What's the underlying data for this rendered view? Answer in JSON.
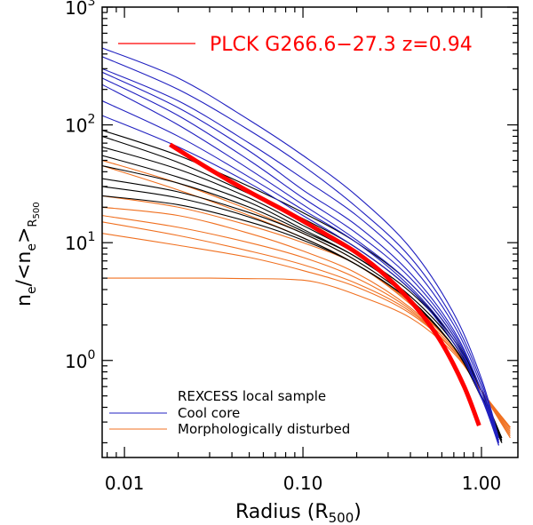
{
  "chart_data": {
    "type": "line",
    "scale": {
      "x": "log",
      "y": "log"
    },
    "xlim": [
      0.0075,
      1.6
    ],
    "ylim": [
      0.15,
      1000
    ],
    "xlabel": {
      "main": "Radius (R",
      "sub": "500",
      "close": ")"
    },
    "ylabel": {
      "n": "n",
      "e1": "e",
      "mid": "/<n",
      "e2": "e",
      "close": ">",
      "sub": "R",
      "subsub": "500"
    },
    "x_ticks": [
      {
        "value": 0.01,
        "label": "0.01"
      },
      {
        "value": 0.1,
        "label": "0.10"
      },
      {
        "value": 1.0,
        "label": "1.00"
      }
    ],
    "y_ticks": [
      {
        "value": 1,
        "base": "10",
        "exp": "0"
      },
      {
        "value": 10,
        "base": "10",
        "exp": "1"
      },
      {
        "value": 100,
        "base": "10",
        "exp": "2"
      },
      {
        "value": 1000,
        "base": "10",
        "exp": "3"
      }
    ],
    "legend_top": {
      "label": "PLCK G266.6−27.3  z=0.94",
      "color": "#ff0000"
    },
    "legend_bottom": {
      "title": "REXCESS local sample",
      "entries": [
        {
          "label": "Cool core",
          "color": "#2020c0"
        },
        {
          "label": "Morphologically disturbed",
          "color": "#f07020"
        }
      ]
    },
    "series": [
      {
        "name": "cool-core-1",
        "group": "cool",
        "color": "#2020c0",
        "x": [
          0.0075,
          0.02,
          0.05,
          0.1,
          0.2,
          0.4,
          0.7,
          1.0,
          1.25
        ],
        "y": [
          450,
          250,
          110,
          55,
          25,
          9,
          2.5,
          0.7,
          0.22
        ]
      },
      {
        "name": "cool-core-2",
        "group": "cool",
        "color": "#2020c0",
        "x": [
          0.0075,
          0.02,
          0.05,
          0.1,
          0.2,
          0.4,
          0.7,
          1.0,
          1.25
        ],
        "y": [
          380,
          200,
          90,
          45,
          20,
          7.5,
          2.2,
          0.65,
          0.21
        ]
      },
      {
        "name": "cool-core-3",
        "group": "cool",
        "color": "#2020c0",
        "x": [
          0.0075,
          0.02,
          0.05,
          0.1,
          0.2,
          0.4,
          0.7,
          1.0,
          1.25
        ],
        "y": [
          300,
          160,
          70,
          35,
          17,
          6.5,
          2.0,
          0.6,
          0.2
        ]
      },
      {
        "name": "cool-core-4",
        "group": "cool",
        "color": "#2020c0",
        "x": [
          0.0075,
          0.02,
          0.05,
          0.1,
          0.2,
          0.4,
          0.7,
          1.0,
          1.25
        ],
        "y": [
          280,
          140,
          60,
          28,
          14,
          5.5,
          1.8,
          0.55,
          0.19
        ]
      },
      {
        "name": "cool-core-5",
        "group": "cool",
        "color": "#2020c0",
        "x": [
          0.0075,
          0.02,
          0.05,
          0.1,
          0.2,
          0.4,
          0.7,
          1.0,
          1.25
        ],
        "y": [
          250,
          120,
          50,
          24,
          12,
          5.0,
          1.7,
          0.55,
          0.2
        ]
      },
      {
        "name": "cool-core-6",
        "group": "cool",
        "color": "#2020c0",
        "x": [
          0.0075,
          0.02,
          0.05,
          0.1,
          0.2,
          0.4,
          0.7,
          1.0,
          1.25
        ],
        "y": [
          220,
          100,
          42,
          21,
          10.5,
          4.5,
          1.6,
          0.5,
          0.2
        ]
      },
      {
        "name": "cool-core-7",
        "group": "cool",
        "color": "#2020c0",
        "x": [
          0.0075,
          0.02,
          0.05,
          0.1,
          0.2,
          0.4,
          0.7,
          1.0,
          1.25
        ],
        "y": [
          160,
          80,
          36,
          19,
          10,
          4.2,
          1.5,
          0.5,
          0.2
        ]
      },
      {
        "name": "cool-core-8",
        "group": "cool",
        "color": "#2020c0",
        "x": [
          0.0075,
          0.02,
          0.05,
          0.1,
          0.2,
          0.4,
          0.7,
          1.0,
          1.25
        ],
        "y": [
          120,
          65,
          32,
          17,
          9,
          4.0,
          1.4,
          0.48,
          0.19
        ]
      },
      {
        "name": "regular-1",
        "group": "regular",
        "color": "#000000",
        "x": [
          0.0075,
          0.02,
          0.05,
          0.1,
          0.2,
          0.4,
          0.7,
          1.0,
          1.3
        ],
        "y": [
          90,
          55,
          30,
          18,
          10,
          4.5,
          1.6,
          0.55,
          0.2
        ]
      },
      {
        "name": "regular-2",
        "group": "regular",
        "color": "#000000",
        "x": [
          0.0075,
          0.02,
          0.05,
          0.1,
          0.2,
          0.4,
          0.7,
          1.0,
          1.3
        ],
        "y": [
          80,
          48,
          26,
          16,
          9,
          4.0,
          1.5,
          0.5,
          0.2
        ]
      },
      {
        "name": "regular-3",
        "group": "regular",
        "color": "#000000",
        "x": [
          0.0075,
          0.02,
          0.05,
          0.1,
          0.2,
          0.4,
          0.7,
          1.0,
          1.3
        ],
        "y": [
          65,
          42,
          24,
          14,
          8,
          3.8,
          1.5,
          0.55,
          0.22
        ]
      },
      {
        "name": "regular-4",
        "group": "regular",
        "color": "#000000",
        "x": [
          0.0075,
          0.02,
          0.05,
          0.1,
          0.2,
          0.4,
          0.7,
          1.0,
          1.3
        ],
        "y": [
          55,
          36,
          22,
          13,
          7.5,
          3.5,
          1.4,
          0.5,
          0.2
        ]
      },
      {
        "name": "regular-5",
        "group": "regular",
        "color": "#000000",
        "x": [
          0.0075,
          0.02,
          0.05,
          0.1,
          0.2,
          0.4,
          0.7,
          1.0,
          1.3
        ],
        "y": [
          45,
          32,
          20,
          12.5,
          7.5,
          3.5,
          1.4,
          0.5,
          0.21
        ]
      },
      {
        "name": "regular-6",
        "group": "regular",
        "color": "#000000",
        "x": [
          0.0075,
          0.02,
          0.05,
          0.1,
          0.2,
          0.4,
          0.7,
          1.0,
          1.3
        ],
        "y": [
          35,
          27,
          18,
          12,
          7,
          3.3,
          1.3,
          0.48,
          0.2
        ]
      },
      {
        "name": "regular-7",
        "group": "regular",
        "color": "#000000",
        "x": [
          0.0075,
          0.02,
          0.05,
          0.1,
          0.2,
          0.4,
          0.7,
          1.0,
          1.3
        ],
        "y": [
          30,
          24,
          16.5,
          11,
          6.5,
          3.2,
          1.3,
          0.5,
          0.21
        ]
      },
      {
        "name": "regular-8",
        "group": "regular",
        "color": "#000000",
        "x": [
          0.0075,
          0.02,
          0.05,
          0.1,
          0.2,
          0.4,
          0.7,
          1.0,
          1.3
        ],
        "y": [
          25,
          21,
          15,
          10.5,
          6.5,
          3.2,
          1.3,
          0.5,
          0.22
        ]
      },
      {
        "name": "disturbed-1",
        "group": "disturbed",
        "color": "#f07020",
        "x": [
          0.0075,
          0.02,
          0.05,
          0.1,
          0.2,
          0.4,
          0.7,
          1.0,
          1.45
        ],
        "y": [
          50,
          32,
          19,
          12,
          7,
          3.3,
          1.3,
          0.55,
          0.22
        ]
      },
      {
        "name": "disturbed-2",
        "group": "disturbed",
        "color": "#f07020",
        "x": [
          0.0075,
          0.02,
          0.05,
          0.1,
          0.2,
          0.4,
          0.7,
          1.0,
          1.45
        ],
        "y": [
          45,
          28,
          17,
          11,
          6.5,
          3.1,
          1.3,
          0.55,
          0.23
        ]
      },
      {
        "name": "disturbed-3",
        "group": "disturbed",
        "color": "#f07020",
        "x": [
          0.0075,
          0.02,
          0.05,
          0.1,
          0.2,
          0.4,
          0.7,
          1.0,
          1.45
        ],
        "y": [
          25,
          20,
          14,
          10,
          6.5,
          3.0,
          1.3,
          0.55,
          0.24
        ]
      },
      {
        "name": "disturbed-4",
        "group": "disturbed",
        "color": "#f07020",
        "x": [
          0.0075,
          0.02,
          0.05,
          0.1,
          0.2,
          0.4,
          0.7,
          1.0,
          1.45
        ],
        "y": [
          20,
          17,
          12,
          8.5,
          5.5,
          2.8,
          1.25,
          0.55,
          0.25
        ]
      },
      {
        "name": "disturbed-5",
        "group": "disturbed",
        "color": "#f07020",
        "x": [
          0.0075,
          0.02,
          0.05,
          0.1,
          0.2,
          0.4,
          0.7,
          1.0,
          1.45
        ],
        "y": [
          17,
          13.5,
          10,
          7.5,
          5,
          2.7,
          1.2,
          0.55,
          0.26
        ]
      },
      {
        "name": "disturbed-6",
        "group": "disturbed",
        "color": "#f07020",
        "x": [
          0.0075,
          0.02,
          0.05,
          0.1,
          0.2,
          0.4,
          0.7,
          1.0,
          1.45
        ],
        "y": [
          15,
          11.5,
          8.5,
          6.5,
          4.5,
          2.6,
          1.2,
          0.55,
          0.27
        ]
      },
      {
        "name": "disturbed-7",
        "group": "disturbed",
        "color": "#f07020",
        "x": [
          0.0075,
          0.02,
          0.05,
          0.1,
          0.2,
          0.4,
          0.7,
          1.0,
          1.45
        ],
        "y": [
          12,
          9.5,
          7.5,
          5.8,
          4.2,
          2.5,
          1.2,
          0.55,
          0.27
        ]
      },
      {
        "name": "disturbed-8",
        "group": "disturbed",
        "color": "#f07020",
        "x": [
          0.0075,
          0.02,
          0.03,
          0.05,
          0.08,
          0.12,
          0.2,
          0.4,
          0.7,
          1.0,
          1.45
        ],
        "y": [
          5,
          5,
          5,
          4.95,
          4.9,
          4.6,
          3.6,
          2.3,
          1.15,
          0.55,
          0.27
        ]
      },
      {
        "name": "PLCK G266.6-27.3",
        "group": "target",
        "color": "#ff0000",
        "x": [
          0.018,
          0.03,
          0.05,
          0.08,
          0.12,
          0.2,
          0.3,
          0.45,
          0.6,
          0.8,
          0.97
        ],
        "y": [
          68,
          42,
          27,
          18.5,
          13,
          8.2,
          5.0,
          2.6,
          1.4,
          0.6,
          0.28
        ]
      }
    ]
  }
}
